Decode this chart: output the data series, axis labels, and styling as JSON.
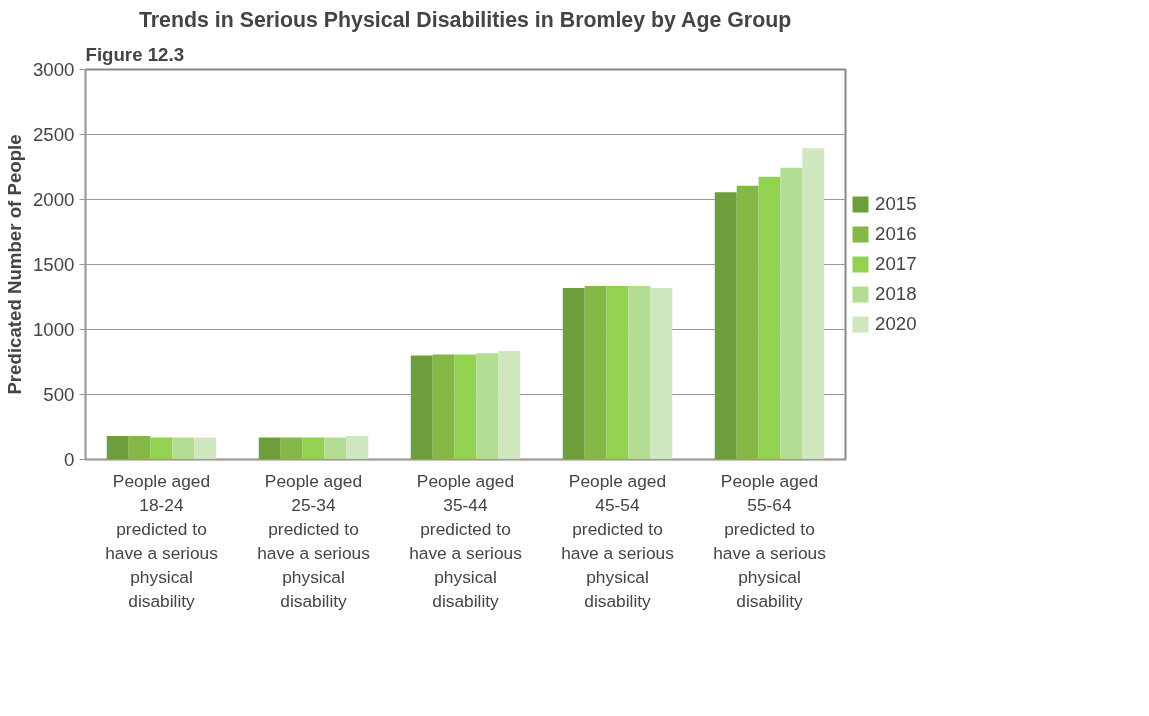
{
  "chart_data": {
    "type": "bar",
    "title": "Trends in Serious Physical Disabilities in Bromley by Age Group",
    "ylabel": "Predicated Number of People",
    "annotations": [
      "Figure 12.3"
    ],
    "categories": [
      "People aged 18-24 predicted to have a serious physical disability",
      "People aged 25-34 predicted to have a serious physical disability",
      "People aged 35-44 predicted to have a serious physical disability",
      "People aged 45-54 predicted to have a serious physical disability",
      "People aged 55-64 predicted to have a serious physical disability"
    ],
    "series": [
      {
        "name": "2015",
        "color": "#6e9d3c",
        "values": [
          180,
          170,
          800,
          1320,
          2055
        ]
      },
      {
        "name": "2016",
        "color": "#84b847",
        "values": [
          180,
          170,
          808,
          1335,
          2105
        ]
      },
      {
        "name": "2017",
        "color": "#93d150",
        "values": [
          170,
          170,
          808,
          1335,
          2175
        ]
      },
      {
        "name": "2018",
        "color": "#b3dd92",
        "values": [
          170,
          170,
          818,
          1335,
          2245
        ]
      },
      {
        "name": "2020",
        "color": "#d0e7bf",
        "values": [
          170,
          180,
          835,
          1320,
          2395
        ]
      }
    ],
    "ylim": [
      0,
      3000
    ],
    "yticks": [
      0,
      500,
      1000,
      1500,
      2000,
      2500,
      3000
    ],
    "grid": "y",
    "legend": "right"
  }
}
